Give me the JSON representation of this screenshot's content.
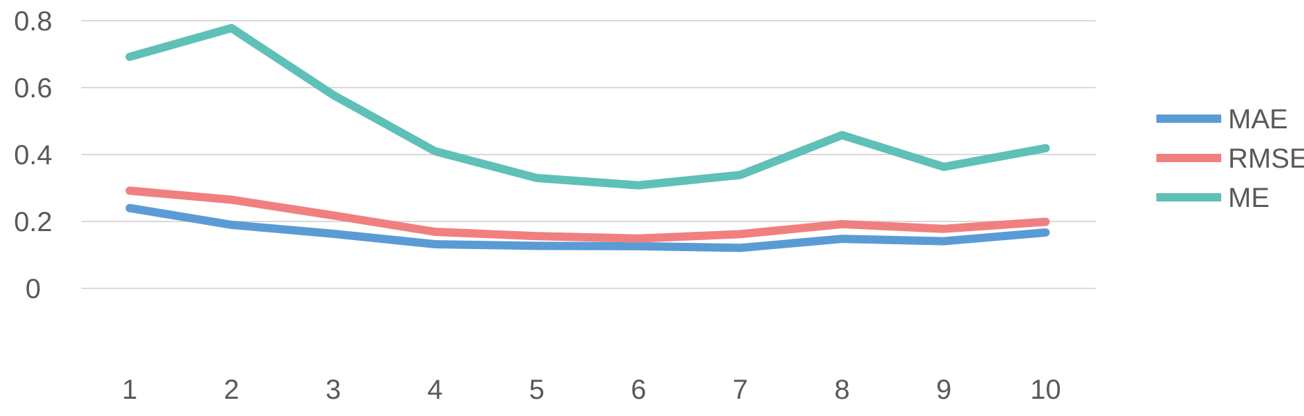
{
  "chart_data": {
    "type": "line",
    "title": "",
    "xlabel": "",
    "ylabel": "",
    "categories": [
      "1",
      "2",
      "3",
      "4",
      "5",
      "6",
      "7",
      "8",
      "9",
      "10"
    ],
    "ylim": [
      0,
      0.8
    ],
    "yticks": [
      0,
      0.2,
      0.4,
      0.6,
      0.8
    ],
    "ytick_labels": [
      "0",
      "0.2",
      "0.4",
      "0.6",
      "0.8"
    ],
    "grid": true,
    "legend_position": "right",
    "series": [
      {
        "name": "MAE",
        "color": "#5b9bd5",
        "values": [
          0.24,
          0.19,
          0.163,
          0.132,
          0.127,
          0.126,
          0.121,
          0.148,
          0.141,
          0.167
        ]
      },
      {
        "name": "RMSE",
        "color": "#f08080",
        "values": [
          0.292,
          0.265,
          0.218,
          0.169,
          0.156,
          0.149,
          0.162,
          0.192,
          0.178,
          0.199
        ]
      },
      {
        "name": "ME",
        "color": "#5fc0b8",
        "values": [
          0.692,
          0.778,
          0.578,
          0.41,
          0.33,
          0.308,
          0.339,
          0.458,
          0.363,
          0.419
        ]
      }
    ]
  }
}
